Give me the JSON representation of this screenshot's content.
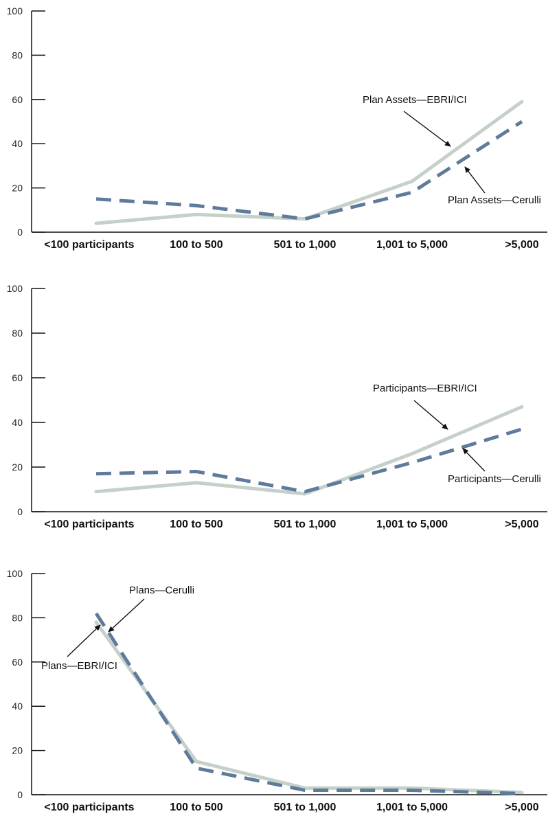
{
  "colors": {
    "ebri_ici": "#c4d0c9",
    "cerulli": "#5f7b9c",
    "axis": "#111111",
    "arrow": "#111111"
  },
  "chart_data": [
    {
      "type": "line",
      "categories": [
        "<100 participants",
        "100 to 500",
        "501 to 1,000",
        "1,001 to 5,000",
        ">5,000"
      ],
      "ylim": [
        0,
        100
      ],
      "yticks": [
        0,
        20,
        40,
        60,
        80,
        100
      ],
      "grid": false,
      "series": [
        {
          "name": "Plan Assets—EBRI/ICI",
          "style": "solid",
          "color": "#c4d0c9",
          "values": [
            4,
            8,
            6,
            23,
            59
          ]
        },
        {
          "name": "Plan Assets—Cerulli",
          "style": "dashed",
          "color": "#5f7b9c",
          "values": [
            15,
            12,
            6,
            18,
            50
          ]
        }
      ]
    },
    {
      "type": "line",
      "categories": [
        "<100 participants",
        "100 to 500",
        "501 to 1,000",
        "1,001 to 5,000",
        ">5,000"
      ],
      "ylim": [
        0,
        100
      ],
      "yticks": [
        0,
        20,
        40,
        60,
        80,
        100
      ],
      "grid": false,
      "series": [
        {
          "name": "Participants—EBRI/ICI",
          "style": "solid",
          "color": "#c4d0c9",
          "values": [
            9,
            13,
            8,
            26,
            47
          ]
        },
        {
          "name": "Participants—Cerulli",
          "style": "dashed",
          "color": "#5f7b9c",
          "values": [
            17,
            18,
            9,
            22,
            37
          ]
        }
      ]
    },
    {
      "type": "line",
      "categories": [
        "<100 participants",
        "100 to 500",
        "501 to 1,000",
        "1,001 to 5,000",
        ">5,000"
      ],
      "ylim": [
        0,
        100
      ],
      "yticks": [
        0,
        20,
        40,
        60,
        80,
        100
      ],
      "grid": false,
      "series": [
        {
          "name": "Plans—EBRI/ICI",
          "style": "solid",
          "color": "#c4d0c9",
          "values": [
            78,
            15,
            3,
            3,
            1
          ]
        },
        {
          "name": "Plans—Cerulli",
          "style": "dashed",
          "color": "#5f7b9c",
          "values": [
            82,
            12,
            2,
            2,
            0.5
          ]
        }
      ]
    }
  ]
}
